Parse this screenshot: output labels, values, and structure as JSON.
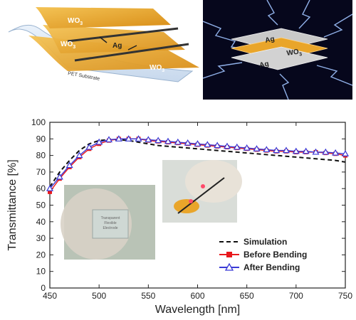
{
  "schematic_left": {
    "layer_top": "WO",
    "layer_top_sub": "3",
    "layer_mid": "WO",
    "layer_mid_sub": "3",
    "layer_ag": "Ag",
    "layer_bottom": "WO",
    "layer_bottom_sub": "3",
    "substrate": "PET Substrate"
  },
  "schematic_right": {
    "ag_top": "Ag",
    "wo": "WO",
    "wo_sub": "3",
    "ag_bottom": "Ag"
  },
  "photo_left": {
    "text_line1": "Transparent",
    "text_line2": "Flexible",
    "text_line3": "Electrode"
  },
  "colors": {
    "simulation": "#111111",
    "before": "#e8191c",
    "after": "#3a3ad6",
    "gold": "#e9a52a"
  },
  "chart_data": {
    "type": "line",
    "title": "",
    "xlabel": "Wavelength [nm]",
    "ylabel": "Transmittance [%]",
    "xlim": [
      450,
      750
    ],
    "ylim": [
      0,
      100
    ],
    "xticks": [
      "450",
      "500",
      "550",
      "600",
      "650",
      "700",
      "750"
    ],
    "yticks": [
      "0",
      "10",
      "20",
      "30",
      "40",
      "50",
      "60",
      "70",
      "80",
      "90",
      "100"
    ],
    "grid": false,
    "legend_position": "bottom-right",
    "series": [
      {
        "name": "Simulation",
        "style": "dashed",
        "x": [
          450,
          460,
          470,
          480,
          490,
          500,
          510,
          520,
          530,
          540,
          550,
          560,
          570,
          580,
          590,
          600,
          610,
          620,
          630,
          640,
          650,
          660,
          670,
          680,
          690,
          700,
          710,
          720,
          730,
          740,
          750
        ],
        "values": [
          61,
          70,
          77,
          83,
          87,
          89,
          89.5,
          89.5,
          89,
          88,
          87,
          86,
          85.5,
          85,
          84.5,
          84,
          83.5,
          83,
          82.5,
          82,
          81.5,
          81,
          80.5,
          80,
          79.5,
          79,
          78.5,
          78,
          77.5,
          77,
          76
        ]
      },
      {
        "name": "Before Bending",
        "style": "square",
        "x": [
          450,
          460,
          470,
          480,
          490,
          500,
          510,
          520,
          530,
          540,
          550,
          560,
          570,
          580,
          590,
          600,
          610,
          620,
          630,
          640,
          650,
          660,
          670,
          680,
          690,
          700,
          710,
          720,
          730,
          740,
          750
        ],
        "values": [
          58,
          66,
          73,
          79,
          84,
          87,
          89,
          90,
          90,
          90,
          89,
          88.5,
          88,
          87.5,
          87,
          86.5,
          86,
          85.5,
          85,
          84.5,
          84,
          83.5,
          83,
          82.5,
          82.5,
          82,
          82,
          82,
          81.5,
          81,
          80
        ]
      },
      {
        "name": "After Bending",
        "style": "triangle",
        "x": [
          450,
          460,
          470,
          480,
          490,
          500,
          510,
          520,
          530,
          540,
          550,
          560,
          570,
          580,
          590,
          600,
          610,
          620,
          630,
          640,
          650,
          660,
          670,
          680,
          690,
          700,
          710,
          720,
          730,
          740,
          750
        ],
        "values": [
          60,
          67,
          74,
          80,
          85,
          88,
          89.5,
          90,
          90,
          90,
          89.5,
          89,
          88.5,
          88,
          87.5,
          87,
          86.5,
          86,
          85.5,
          85,
          84.5,
          84,
          83.5,
          83,
          83,
          82.5,
          82.5,
          82,
          82,
          81.5,
          81
        ]
      }
    ]
  }
}
